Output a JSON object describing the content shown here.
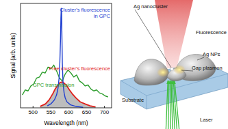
{
  "chart_data": {
    "type": "line",
    "x_label": "Wavelength (nm)",
    "y_label": "Signal (arb. units)",
    "xlim": [
      465,
      720
    ],
    "ylim": [
      0,
      1.05
    ],
    "xticks": [
      500,
      550,
      600,
      650,
      700
    ],
    "tick_labels": "x",
    "grid": false,
    "series": [
      {
        "name": "GPC transmission",
        "color": "#2e9e2e",
        "type": "line",
        "x": [
          470,
          478,
          486,
          494,
          502,
          510,
          518,
          526,
          534,
          542,
          550,
          558,
          566,
          574,
          582,
          590,
          598,
          606,
          614,
          622,
          630,
          638,
          646,
          654,
          662,
          670,
          678,
          686,
          694,
          702,
          710
        ],
        "values": [
          0.13,
          0.18,
          0.17,
          0.22,
          0.24,
          0.3,
          0.31,
          0.36,
          0.35,
          0.41,
          0.39,
          0.43,
          0.37,
          0.3,
          0.27,
          0.34,
          0.38,
          0.35,
          0.31,
          0.33,
          0.27,
          0.25,
          0.22,
          0.23,
          0.19,
          0.17,
          0.18,
          0.15,
          0.14,
          0.12,
          0.11
        ]
      },
      {
        "name": "Free cluster's fluorescence",
        "color": "#e0201b",
        "type": "area",
        "x": [
          520,
          535,
          545,
          555,
          562,
          570,
          576,
          582,
          588,
          595,
          602,
          610,
          620,
          632,
          645,
          660,
          675
        ],
        "values": [
          0.015,
          0.04,
          0.08,
          0.14,
          0.19,
          0.23,
          0.255,
          0.26,
          0.245,
          0.22,
          0.18,
          0.14,
          0.1,
          0.06,
          0.04,
          0.02,
          0.01
        ]
      },
      {
        "name": "Cluster's fluorescence in GPC",
        "color": "#1f3fd0",
        "type": "line",
        "x": [
          540,
          550,
          560,
          566,
          570,
          573,
          575,
          577,
          578,
          579,
          580,
          581,
          582,
          584,
          587,
          590,
          595,
          605,
          620,
          640
        ],
        "values": [
          0.02,
          0.04,
          0.08,
          0.13,
          0.2,
          0.3,
          0.45,
          0.7,
          0.9,
          1.0,
          0.95,
          0.7,
          0.45,
          0.25,
          0.15,
          0.1,
          0.06,
          0.03,
          0.015,
          0.005
        ]
      }
    ]
  },
  "diagram": {
    "labels": [
      "Ag nanocluster",
      "Fluorescence",
      "Ag NPs",
      "Gap plasmon",
      "Substrate",
      "Laser"
    ]
  }
}
